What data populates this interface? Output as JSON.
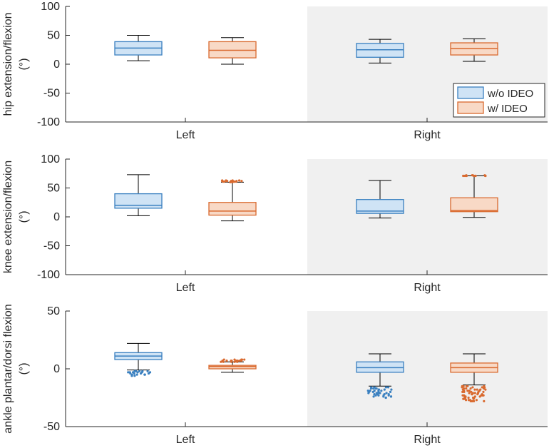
{
  "colors": {
    "series_a_edge": "#3a80c0",
    "series_a_fill": "#cfe3f5",
    "series_b_edge": "#d9692e",
    "series_b_fill": "#f8d9c6",
    "shade": "#f0f0f0",
    "axis": "#262626"
  },
  "legend": {
    "series_a": "w/o IDEO",
    "series_b": "w/ IDEO",
    "placement": "bottom-right of top panel"
  },
  "chart_data": [
    {
      "type": "box",
      "ylabel_line1": "hip  extension/flexion",
      "ylabel_line2": "(°)",
      "ylim": [
        -100,
        100
      ],
      "yticks": [
        -100,
        -50,
        0,
        50,
        100
      ],
      "ytick_labels": [
        "-100",
        "-50",
        "0",
        "50",
        "100"
      ],
      "categories": [
        "Left",
        "Right"
      ],
      "shaded_category": "Right",
      "show_legend": true,
      "series": [
        {
          "name": "w/o IDEO",
          "boxes": [
            {
              "category": "Left",
              "whisker_low": 6,
              "q1": 16,
              "median": 28,
              "q3": 39,
              "whisker_high": 50
            },
            {
              "category": "Right",
              "whisker_low": 2,
              "q1": 12,
              "median": 25,
              "q3": 36,
              "whisker_high": 43
            }
          ]
        },
        {
          "name": "w/ IDEO",
          "boxes": [
            {
              "category": "Left",
              "whisker_low": 0,
              "q1": 11,
              "median": 24,
              "q3": 39,
              "whisker_high": 46
            },
            {
              "category": "Right",
              "whisker_low": 5,
              "q1": 16,
              "median": 27,
              "q3": 37,
              "whisker_high": 44
            }
          ]
        }
      ]
    },
    {
      "type": "box",
      "ylabel_line1": "knee  extension/flexion",
      "ylabel_line2": "(°)",
      "ylim": [
        -100,
        100
      ],
      "yticks": [
        -100,
        -50,
        0,
        50,
        100
      ],
      "ytick_labels": [
        "-100",
        "-50",
        "0",
        "50",
        "100"
      ],
      "categories": [
        "Left",
        "Right"
      ],
      "shaded_category": "Right",
      "show_legend": false,
      "series": [
        {
          "name": "w/o IDEO",
          "boxes": [
            {
              "category": "Left",
              "whisker_low": 2,
              "q1": 15,
              "median": 20,
              "q3": 40,
              "whisker_high": 73
            },
            {
              "category": "Right",
              "whisker_low": -2,
              "q1": 6,
              "median": 10,
              "q3": 30,
              "whisker_high": 63
            }
          ]
        },
        {
          "name": "w/ IDEO",
          "boxes": [
            {
              "category": "Left",
              "whisker_low": -7,
              "q1": 3,
              "median": 10,
              "q3": 25,
              "whisker_high": 60,
              "outliers": [
                60,
                61,
                61,
                62,
                62,
                63,
                63,
                62,
                61,
                60,
                62,
                63,
                61,
                62,
                60,
                63,
                62,
                61
              ]
            },
            {
              "category": "Right",
              "whisker_low": -1,
              "q1": 9,
              "median": 11,
              "q3": 33,
              "whisker_high": 71,
              "outliers": [
                71,
                71,
                72,
                71,
                72,
                71,
                71,
                72,
                71,
                71,
                72,
                71
              ]
            }
          ]
        }
      ]
    },
    {
      "type": "box",
      "ylabel_line1": "ankle  plantar/dorsi  flexion",
      "ylabel_line2": "(°)",
      "ylim": [
        -50,
        50
      ],
      "yticks": [
        -50,
        0,
        50
      ],
      "ytick_labels": [
        "-50",
        "0",
        "50"
      ],
      "categories": [
        "Left",
        "Right"
      ],
      "shaded_category": "Right",
      "show_legend": false,
      "series": [
        {
          "name": "w/o IDEO",
          "boxes": [
            {
              "category": "Left",
              "whisker_low": -1,
              "q1": 8,
              "median": 11,
              "q3": 14,
              "whisker_high": 22,
              "outliers": [
                -2,
                -3,
                -4,
                -3,
                -5,
                -6,
                -2,
                -4,
                -3,
                -5,
                -2,
                -6,
                -3,
                -4,
                -5,
                -2,
                -3,
                -6,
                -4,
                -2,
                -5,
                -3
              ]
            },
            {
              "category": "Right",
              "whisker_low": -15,
              "q1": -3,
              "median": 1,
              "q3": 6,
              "whisker_high": 13,
              "outliers": [
                -16,
                -17,
                -18,
                -19,
                -20,
                -21,
                -22,
                -23,
                -24,
                -17,
                -19,
                -21,
                -23,
                -16,
                -18,
                -20,
                -22,
                -24,
                -25,
                -17,
                -19,
                -21,
                -23,
                -18,
                -20,
                -22,
                -16,
                -24,
                -19,
                -21,
                -23,
                -17,
                -20,
                -22,
                -18,
                -25,
                -16,
                -24,
                -19,
                -21
              ]
            }
          ]
        },
        {
          "name": "w/ IDEO",
          "boxes": [
            {
              "category": "Left",
              "whisker_low": -3,
              "q1": 0,
              "median": 2,
              "q3": 3,
              "whisker_high": 6,
              "outliers": [
                6,
                7,
                7,
                8,
                6,
                7,
                8,
                7,
                6,
                7,
                8,
                7,
                6,
                8,
                7,
                6,
                7,
                8
              ]
            },
            {
              "category": "Right",
              "whisker_low": -14,
              "q1": -3,
              "median": 1,
              "q3": 5,
              "whisker_high": 13,
              "outliers": [
                -15,
                -16,
                -17,
                -18,
                -19,
                -20,
                -21,
                -22,
                -23,
                -24,
                -25,
                -26,
                -27,
                -28,
                -15,
                -17,
                -19,
                -21,
                -23,
                -25,
                -27,
                -16,
                -18,
                -20,
                -22,
                -24,
                -26,
                -28,
                -15,
                -18,
                -21,
                -24,
                -27,
                -16,
                -19,
                -22,
                -25,
                -28,
                -17,
                -20,
                -23,
                -26,
                -15,
                -19,
                -23,
                -27,
                -16,
                -20,
                -24,
                -28,
                -18,
                -22,
                -26,
                -17,
                -21,
                -25,
                -15,
                -20,
                -25,
                -18,
                -23,
                -28
              ]
            }
          ]
        }
      ]
    }
  ]
}
